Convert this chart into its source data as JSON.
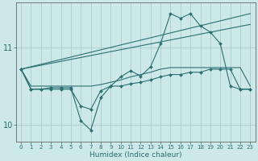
{
  "xlabel": "Humidex (Indice chaleur)",
  "ylabel": "",
  "background_color": "#cce8e8",
  "grid_color": "#aacccc",
  "line_color": "#2a7070",
  "xlim": [
    -0.5,
    23.5
  ],
  "ylim": [
    9.78,
    11.58
  ],
  "yticks": [
    10,
    11
  ],
  "xticks": [
    0,
    1,
    2,
    3,
    4,
    5,
    6,
    7,
    8,
    9,
    10,
    11,
    12,
    13,
    14,
    15,
    16,
    17,
    18,
    19,
    20,
    21,
    22,
    23
  ],
  "series": [
    {
      "x": [
        0,
        1,
        2,
        3,
        4,
        5,
        6,
        7,
        8,
        9,
        10,
        11,
        12,
        13,
        14,
        15,
        16,
        17,
        18,
        19,
        20,
        21,
        22,
        23
      ],
      "y": [
        10.72,
        10.5,
        10.5,
        10.5,
        10.5,
        10.5,
        10.5,
        10.5,
        10.52,
        10.55,
        10.58,
        10.62,
        10.65,
        10.68,
        10.72,
        10.74,
        10.74,
        10.74,
        10.74,
        10.74,
        10.74,
        10.74,
        10.74,
        10.5
      ],
      "marker": false
    },
    {
      "x": [
        0,
        23
      ],
      "y": [
        10.72,
        11.3
      ],
      "marker": false
    },
    {
      "x": [
        0,
        23
      ],
      "y": [
        10.72,
        11.44
      ],
      "marker": false
    },
    {
      "x": [
        0,
        1,
        2,
        3,
        4,
        5,
        6,
        7,
        8,
        9,
        10,
        11,
        12,
        13,
        14,
        15,
        16,
        17,
        18,
        19,
        20,
        21,
        22,
        23
      ],
      "y": [
        10.72,
        10.46,
        10.46,
        10.46,
        10.46,
        10.46,
        10.24,
        10.2,
        10.44,
        10.5,
        10.62,
        10.7,
        10.63,
        10.75,
        11.05,
        11.44,
        11.38,
        11.44,
        11.28,
        11.2,
        11.05,
        10.5,
        10.46,
        10.46
      ],
      "marker": true
    },
    {
      "x": [
        0,
        1,
        2,
        3,
        4,
        5,
        6,
        7,
        8,
        9,
        10,
        11,
        12,
        13,
        14,
        15,
        16,
        17,
        18,
        19,
        20,
        21,
        22,
        23
      ],
      "y": [
        10.72,
        10.46,
        10.46,
        10.48,
        10.48,
        10.48,
        10.05,
        9.93,
        10.35,
        10.5,
        10.5,
        10.53,
        10.55,
        10.58,
        10.62,
        10.65,
        10.65,
        10.68,
        10.68,
        10.72,
        10.72,
        10.72,
        10.46,
        10.46
      ],
      "marker": true
    }
  ]
}
